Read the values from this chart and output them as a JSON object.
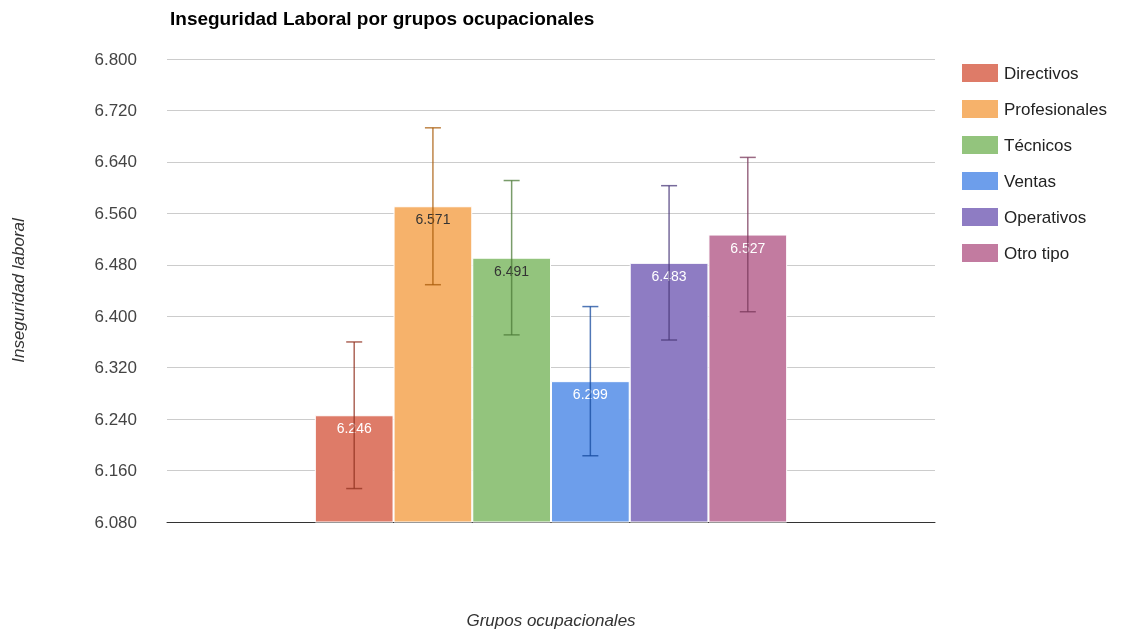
{
  "chart_data": {
    "type": "bar",
    "title": "Inseguridad Laboral por grupos ocupacionales",
    "xlabel": "Grupos ocupacionales",
    "ylabel": "Inseguridad laboral",
    "categories": [
      null
    ],
    "series": [
      {
        "name": "Directivos",
        "color": "#de7b68",
        "values": [
          6.246
        ],
        "errors": [
          0.114
        ]
      },
      {
        "name": "Profesionales",
        "color": "#f6b26b",
        "values": [
          6.571
        ],
        "errors": [
          0.122
        ]
      },
      {
        "name": "Técnicos",
        "color": "#93c47d",
        "values": [
          6.491
        ],
        "errors": [
          0.12
        ]
      },
      {
        "name": "Ventas",
        "color": "#6d9eeb",
        "values": [
          6.299
        ],
        "errors": [
          0.116
        ]
      },
      {
        "name": "Operativos",
        "color": "#8e7cc3",
        "values": [
          6.483
        ],
        "errors": [
          0.12
        ]
      },
      {
        "name": "Otro tipo",
        "color": "#c27ba0",
        "values": [
          6.527
        ],
        "errors": [
          0.12
        ]
      }
    ],
    "ylim": [
      6.08,
      6.8
    ],
    "yticks": [
      {
        "value": 6.08,
        "label": "6.080"
      },
      {
        "value": 6.16,
        "label": "6.160"
      },
      {
        "value": 6.24,
        "label": "6.240"
      },
      {
        "value": 6.32,
        "label": "6.320"
      },
      {
        "value": 6.4,
        "label": "6.400"
      },
      {
        "value": 6.48,
        "label": "6.480"
      },
      {
        "value": 6.56,
        "label": "6.560"
      },
      {
        "value": 6.64,
        "label": "6.640"
      },
      {
        "value": 6.72,
        "label": "6.720"
      },
      {
        "value": 6.8,
        "label": "6.800"
      }
    ],
    "grid": "y",
    "legend": "right",
    "data_labels": true
  }
}
